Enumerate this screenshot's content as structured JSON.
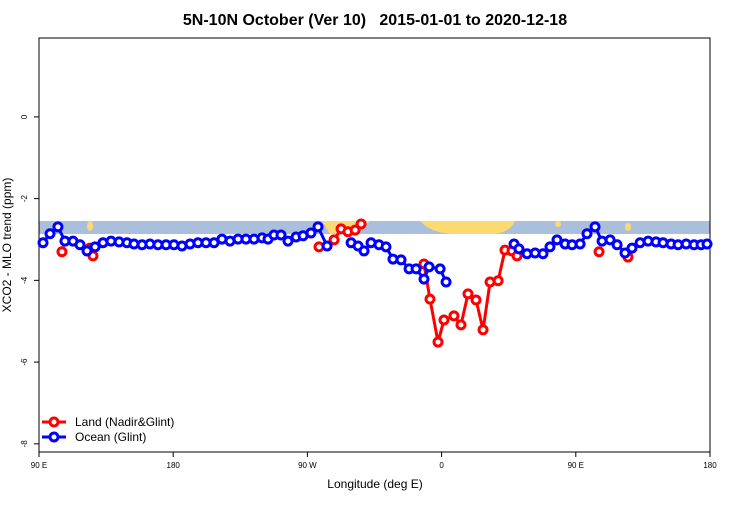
{
  "chart_data": {
    "type": "line",
    "title": "5N-10N October (Ver 10)   2015-01-01 to 2020-12-18",
    "xlabel": "Longitude (deg E)",
    "ylabel": "XCO2 - MLO trend (ppm)",
    "xlim": [
      90,
      540
    ],
    "xticks": [
      {
        "value": 90,
        "label": "90 E"
      },
      180,
      {
        "value": 270,
        "label": "90 W"
      },
      {
        "value": 360,
        "label": "0"
      },
      {
        "value": 450,
        "label": "90 E"
      },
      {
        "value": 540,
        "label": "180"
      }
    ],
    "ylim": [
      -8.2,
      1.93
    ],
    "yticks": [
      0,
      -2,
      -4,
      -6,
      -8
    ],
    "legend": "bottom-left",
    "series": [
      {
        "name": "Land (Nadir&Glint)",
        "color": "#ff0000",
        "x": [
          105.4,
          null,
          124.2,
          126.2,
          null,
          277.8,
          null,
          287.9,
          292.6,
          297.2,
          302.0,
          306.0,
          null,
          348.2,
          352.2,
          357.6,
          361.6,
          368.3,
          373.0,
          377.7,
          383.1,
          387.8,
          392.5,
          397.9,
          402.5,
          407.2,
          410.6,
          null,
          465.6,
          null,
          485.0
        ],
        "values": [
          -3.3,
          null,
          -3.21,
          -3.4,
          null,
          -3.18,
          null,
          -3.01,
          -2.74,
          -2.81,
          -2.77,
          -2.62,
          null,
          -3.6,
          -4.46,
          -5.51,
          -4.97,
          -4.87,
          -5.09,
          -4.33,
          -4.48,
          -5.21,
          -4.04,
          -4.01,
          -3.26,
          -3.28,
          -3.4,
          null,
          -3.3,
          null,
          -3.43
        ]
      },
      {
        "name": "Ocean (Glint)",
        "color": "#0000ff",
        "x": [
          92.7,
          97.4,
          102.7,
          107.4,
          112.8,
          117.5,
          122.2,
          127.6,
          132.9,
          138.3,
          143.7,
          149.0,
          153.7,
          159.1,
          164.4,
          169.8,
          175.2,
          180.5,
          185.9,
          191.3,
          196.6,
          202.0,
          207.4,
          212.7,
          218.1,
          223.5,
          228.8,
          234.2,
          239.6,
          243.6,
          247.6,
          252.3,
          257.0,
          262.4,
          267.1,
          272.4,
          277.1,
          283.2,
          null,
          299.3,
          304.0,
          308.0,
          312.7,
          318.0,
          322.7,
          327.4,
          332.8,
          338.2,
          342.9,
          348.2,
          351.6,
          359.0,
          363.0,
          null,
          408.6,
          411.9,
          417.3,
          422.7,
          428.0,
          432.7,
          437.4,
          442.8,
          447.5,
          452.9,
          457.5,
          462.9,
          467.6,
          473.0,
          477.7,
          483.0,
          487.7,
          493.1,
          498.5,
          503.8,
          508.5,
          513.9,
          518.6,
          524.0,
          529.3,
          534.0,
          538.0
        ],
        "values": [
          -3.08,
          -2.86,
          -2.69,
          -3.04,
          -3.04,
          -3.13,
          -3.28,
          -3.18,
          -3.08,
          -3.04,
          -3.06,
          -3.08,
          -3.11,
          -3.13,
          -3.11,
          -3.13,
          -3.13,
          -3.13,
          -3.16,
          -3.11,
          -3.08,
          -3.08,
          -3.08,
          -2.99,
          -3.04,
          -2.99,
          -2.99,
          -2.99,
          -2.96,
          -2.99,
          -2.89,
          -2.89,
          -3.04,
          -2.94,
          -2.91,
          -2.84,
          -2.69,
          -3.16,
          null,
          -3.08,
          -3.16,
          -3.28,
          -3.08,
          -3.13,
          -3.18,
          -3.48,
          -3.5,
          -3.72,
          -3.72,
          -3.97,
          -3.67,
          -3.72,
          -4.04,
          null,
          -3.11,
          -3.23,
          -3.35,
          -3.33,
          -3.35,
          -3.18,
          -3.01,
          -3.11,
          -3.13,
          -3.11,
          -2.86,
          -2.69,
          -3.04,
          -3.01,
          -3.13,
          -3.33,
          -3.21,
          -3.08,
          -3.04,
          -3.06,
          -3.08,
          -3.11,
          -3.13,
          -3.11,
          -3.13,
          -3.13,
          -3.11
        ]
      }
    ]
  }
}
